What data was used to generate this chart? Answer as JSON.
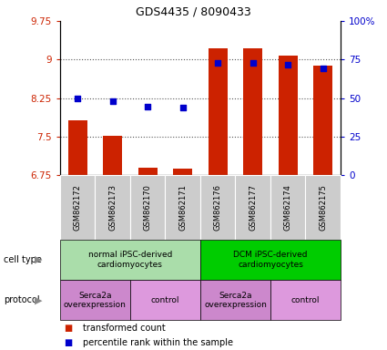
{
  "title": "GDS4435 / 8090433",
  "samples": [
    "GSM862172",
    "GSM862173",
    "GSM862170",
    "GSM862171",
    "GSM862176",
    "GSM862177",
    "GSM862174",
    "GSM862175"
  ],
  "bar_heights": [
    7.82,
    7.52,
    6.9,
    6.87,
    9.22,
    9.22,
    9.07,
    8.88
  ],
  "blue_y": [
    8.25,
    8.18,
    8.08,
    8.07,
    8.93,
    8.93,
    8.9,
    8.83
  ],
  "bar_bottom": 6.75,
  "ylim": [
    6.75,
    9.75
  ],
  "right_ylim": [
    0,
    100
  ],
  "right_yticks": [
    0,
    25,
    50,
    75,
    100
  ],
  "right_yticklabels": [
    "0",
    "25",
    "50",
    "75",
    "100%"
  ],
  "left_yticks": [
    6.75,
    7.5,
    8.25,
    9.0,
    9.75
  ],
  "left_yticklabels": [
    "6.75",
    "7.5",
    "8.25",
    "9",
    "9.75"
  ],
  "grid_yticks": [
    7.5,
    8.25,
    9.0
  ],
  "bar_color": "#cc2200",
  "blue_color": "#0000cc",
  "grid_color": "#555555",
  "cell_type_groups": [
    {
      "label": "normal iPSC-derived\ncardiomyocytes",
      "start": 0,
      "end": 3,
      "color": "#aaddaa"
    },
    {
      "label": "DCM iPSC-derived\ncardiomyocytes",
      "start": 4,
      "end": 7,
      "color": "#00cc00"
    }
  ],
  "protocol_groups": [
    {
      "label": "Serca2a\noverexpression",
      "start": 0,
      "end": 1,
      "color": "#cc88cc"
    },
    {
      "label": "control",
      "start": 2,
      "end": 3,
      "color": "#dd99dd"
    },
    {
      "label": "Serca2a\noverexpression",
      "start": 4,
      "end": 5,
      "color": "#cc88cc"
    },
    {
      "label": "control",
      "start": 6,
      "end": 7,
      "color": "#dd99dd"
    }
  ],
  "legend_items": [
    {
      "label": "transformed count",
      "color": "#cc2200"
    },
    {
      "label": "percentile rank within the sample",
      "color": "#0000cc"
    }
  ],
  "cell_type_label": "cell type",
  "protocol_label": "protocol",
  "left_axis_color": "#cc2200",
  "right_axis_color": "#0000cc",
  "sample_bg_color": "#cccccc",
  "title_fontsize": 9,
  "axis_fontsize": 7.5,
  "sample_fontsize": 6,
  "label_fontsize": 7,
  "legend_fontsize": 7
}
